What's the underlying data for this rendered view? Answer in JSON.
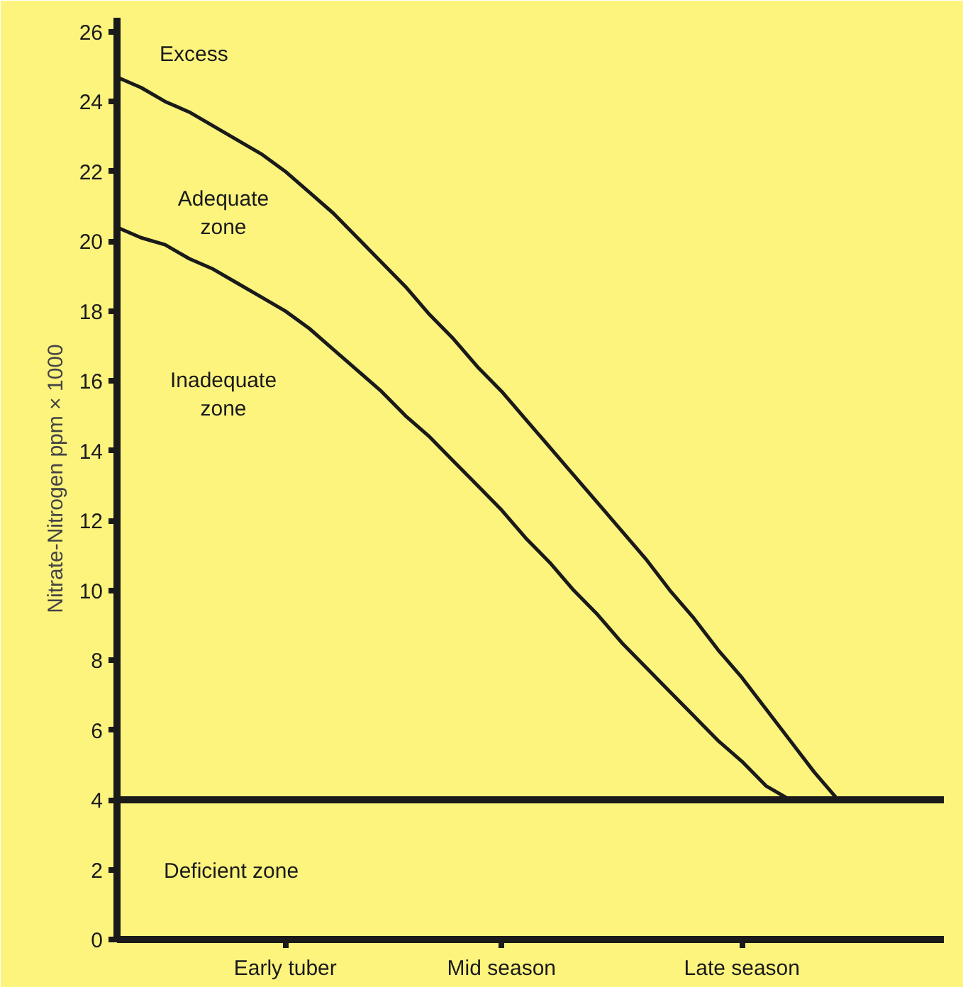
{
  "chart_data": {
    "type": "line",
    "ylabel": "Nitrate-Nitrogen ppm × 1000",
    "categories": [
      null,
      null,
      null,
      null,
      null,
      null,
      null,
      "Early tuber",
      null,
      null,
      null,
      null,
      null,
      null,
      null,
      null,
      "Mid season",
      null,
      null,
      null,
      null,
      null,
      null,
      null,
      null,
      null,
      "Late season",
      null,
      null,
      null,
      null,
      null,
      null,
      null,
      null
    ],
    "ylim": [
      0,
      26.4
    ],
    "yticks": [
      0,
      2,
      4,
      6,
      8,
      10,
      12,
      14,
      16,
      18,
      20,
      22,
      24,
      26
    ],
    "grid": false,
    "marker": "none",
    "line_style": "solid",
    "series": [
      {
        "color": "#1a1a1a",
        "values": [
          24.7,
          24.4,
          24.0,
          23.7,
          23.3,
          22.9,
          22.5,
          22.0,
          21.4,
          20.8,
          20.1,
          19.4,
          18.7,
          17.9,
          17.2,
          16.4,
          15.7,
          14.9,
          14.1,
          13.3,
          12.5,
          11.7,
          10.9,
          10.0,
          9.2,
          8.3,
          7.5,
          6.6,
          5.7,
          4.8,
          4.0,
          null,
          null,
          null,
          null
        ]
      },
      {
        "color": "#1a1a1a",
        "values": [
          20.4,
          20.1,
          19.9,
          19.5,
          19.2,
          18.8,
          18.4,
          18.0,
          17.5,
          16.9,
          16.3,
          15.7,
          15.0,
          14.4,
          13.7,
          13.0,
          12.3,
          11.5,
          10.8,
          10.0,
          9.3,
          8.5,
          7.8,
          7.1,
          6.4,
          5.7,
          5.1,
          4.4,
          4.0,
          null,
          null,
          null,
          null,
          null,
          null
        ]
      }
    ],
    "ref_lines": [
      {
        "axis": "y",
        "value": 4,
        "color": "#1a1a1a"
      }
    ],
    "annotations": [
      "Excess",
      "Adequate\nzone",
      "Inadequate\nzone",
      "Deficient zone"
    ]
  }
}
